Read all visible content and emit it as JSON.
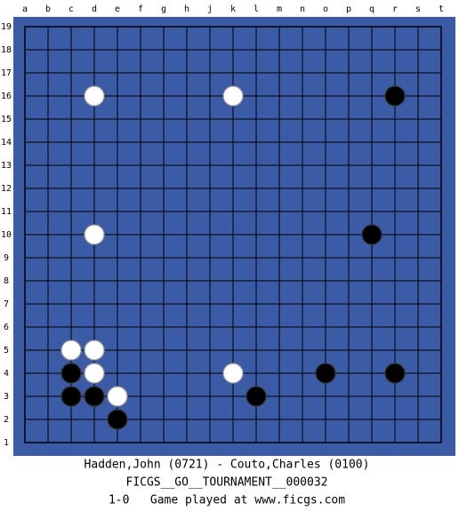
{
  "board": {
    "columns": [
      "a",
      "b",
      "c",
      "d",
      "e",
      "f",
      "g",
      "h",
      "j",
      "k",
      "l",
      "m",
      "n",
      "o",
      "p",
      "q",
      "r",
      "s",
      "t"
    ],
    "rows": [
      19,
      18,
      17,
      16,
      15,
      14,
      13,
      12,
      11,
      10,
      9,
      8,
      7,
      6,
      5,
      4,
      3,
      2,
      1
    ],
    "stones": [
      {
        "col": "d",
        "row": 16,
        "color": "white"
      },
      {
        "col": "k",
        "row": 16,
        "color": "white"
      },
      {
        "col": "r",
        "row": 16,
        "color": "black"
      },
      {
        "col": "d",
        "row": 10,
        "color": "white"
      },
      {
        "col": "q",
        "row": 10,
        "color": "black"
      },
      {
        "col": "c",
        "row": 5,
        "color": "white"
      },
      {
        "col": "d",
        "row": 5,
        "color": "white"
      },
      {
        "col": "c",
        "row": 4,
        "color": "black"
      },
      {
        "col": "d",
        "row": 4,
        "color": "white"
      },
      {
        "col": "k",
        "row": 4,
        "color": "white"
      },
      {
        "col": "o",
        "row": 4,
        "color": "black"
      },
      {
        "col": "r",
        "row": 4,
        "color": "black"
      },
      {
        "col": "c",
        "row": 3,
        "color": "black"
      },
      {
        "col": "d",
        "row": 3,
        "color": "black"
      },
      {
        "col": "e",
        "row": 3,
        "color": "white"
      },
      {
        "col": "l",
        "row": 3,
        "color": "black"
      },
      {
        "col": "e",
        "row": 2,
        "color": "black"
      }
    ]
  },
  "footer": {
    "players": "Hadden,John (0721) - Couto,Charles (0100)",
    "event": "FICGS__GO__TOURNAMENT__000032",
    "result": "1-0   Game played at www.ficgs.com"
  }
}
